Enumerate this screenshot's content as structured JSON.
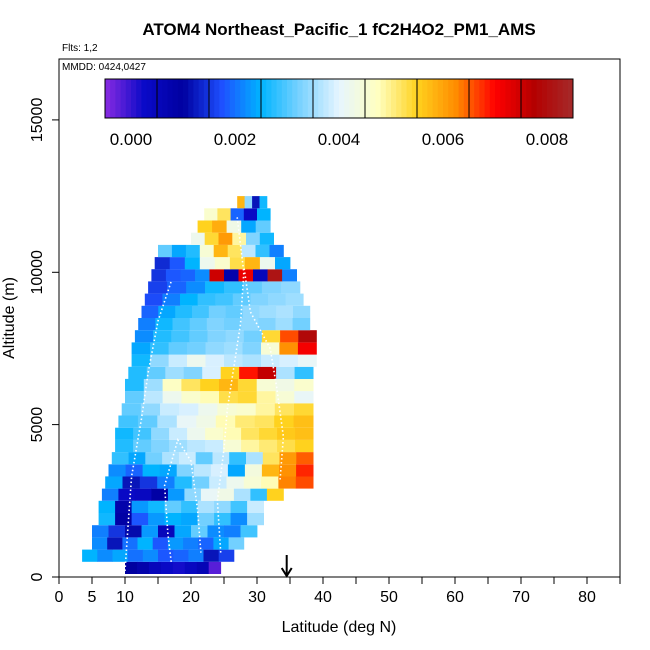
{
  "chart_data": {
    "type": "heatmap",
    "title": "ATOM4 Northeast_Pacific_1 fC2H4O2_PM1_AMS",
    "flights_note": "Flts: 1,2",
    "dates_note": "MMDD: 0424,0427",
    "xlabel": "Latitude (deg N)",
    "ylabel": "Altitude (m)",
    "xlim": [
      0,
      85
    ],
    "ylim": [
      0,
      17000
    ],
    "x_ticks": [
      0,
      5,
      10,
      20,
      30,
      40,
      50,
      60,
      70,
      80
    ],
    "y_ticks": [
      0,
      5000,
      10000,
      15000
    ],
    "colorbar": {
      "range": [
        -0.0005,
        0.0085
      ],
      "ticks": [
        0.0,
        0.002,
        0.004,
        0.006,
        0.008
      ],
      "tick_labels": [
        "0.000",
        "0.002",
        "0.004",
        "0.006",
        "0.008"
      ],
      "colors": [
        "#8a2be2",
        "#0a0ac8",
        "#0000a0",
        "#1e50ff",
        "#00b4ff",
        "#7ad2ff",
        "#e6f5ff",
        "#ffffc0",
        "#ffd21e",
        "#ff8c00",
        "#ff0000",
        "#b40000",
        "#a52a2a"
      ]
    },
    "marker": {
      "latitude": 34.5,
      "label": "arrow"
    },
    "profiles": [
      {
        "alt": 300,
        "lat_min": 10,
        "lat_max": 24.5,
        "values": [
          0.001,
          0.0008,
          0.0005,
          0.0003,
          0.0002,
          0.0004,
          0.0006,
          -0.0002
        ]
      },
      {
        "alt": 700,
        "lat_min": 3.5,
        "lat_max": 26.5,
        "values": [
          0.0025,
          0.0022,
          0.0024,
          0.002,
          0.0022,
          0.0018,
          0.0019,
          0.0021,
          0.0012,
          0.0016
        ]
      },
      {
        "alt": 1100,
        "lat_min": 5,
        "lat_max": 28,
        "values": [
          0.0022,
          0.0012,
          0.002,
          0.0025,
          0.0018,
          0.0023,
          0.0021,
          0.0019,
          0.0024,
          0.0032
        ]
      },
      {
        "alt": 1500,
        "lat_min": 5,
        "lat_max": 30,
        "values": [
          0.0021,
          0.0015,
          0.0011,
          0.0023,
          0.0005,
          0.0024,
          0.0031,
          0.0022,
          0.0021,
          0.0029
        ]
      },
      {
        "alt": 1900,
        "lat_min": 6,
        "lat_max": 31,
        "values": [
          0.0026,
          0.0009,
          0.0018,
          0.0023,
          0.0025,
          0.0024,
          0.0032,
          0.0028,
          0.0022,
          0.0035
        ]
      },
      {
        "alt": 2300,
        "lat_min": 6,
        "lat_max": 31,
        "values": [
          0.0025,
          0.0008,
          0.0023,
          0.0026,
          0.0031,
          0.0028,
          0.0036,
          0.0034,
          0.0029,
          0.0038
        ]
      },
      {
        "alt": 2700,
        "lat_min": 6.5,
        "lat_max": 34,
        "values": [
          0.0021,
          0.0003,
          0.0004,
          0.0009,
          0.0023,
          0.0034,
          0.0041,
          0.0043,
          0.0036,
          0.0028,
          0.0055
        ]
      },
      {
        "alt": 3100,
        "lat_min": 7,
        "lat_max": 38.5,
        "values": [
          0.0024,
          0.0012,
          0.0015,
          0.0021,
          0.0027,
          0.0032,
          0.0038,
          0.0042,
          0.0045,
          0.0048,
          0.0063,
          0.0066
        ]
      },
      {
        "alt": 3500,
        "lat_min": 7.5,
        "lat_max": 38.5,
        "values": [
          0.0022,
          0.0019,
          0.0025,
          0.0024,
          0.0033,
          0.0037,
          0.0039,
          0.0024,
          0.0044,
          0.0058,
          0.0062,
          0.0068
        ]
      },
      {
        "alt": 3900,
        "lat_min": 8,
        "lat_max": 38.5,
        "values": [
          0.0028,
          0.0024,
          0.0032,
          0.0036,
          0.0038,
          0.0031,
          0.0037,
          0.0028,
          0.0036,
          0.0052,
          0.0061,
          0.0065
        ]
      },
      {
        "alt": 4300,
        "lat_min": 8.5,
        "lat_max": 38.5,
        "values": [
          0.0027,
          0.0031,
          0.0033,
          0.0035,
          0.0037,
          0.0038,
          0.0045,
          0.0049,
          0.0051,
          0.0053,
          0.0055
        ]
      },
      {
        "alt": 4700,
        "lat_min": 8.5,
        "lat_max": 38.5,
        "values": [
          0.0026,
          0.0029,
          0.0034,
          0.0038,
          0.0042,
          0.0046,
          0.0048,
          0.0052,
          0.0054,
          0.0056,
          0.0057
        ]
      },
      {
        "alt": 5100,
        "lat_min": 9,
        "lat_max": 38.5,
        "values": [
          0.0029,
          0.0031,
          0.0036,
          0.0041,
          0.0043,
          0.0048,
          0.0051,
          0.0052,
          0.0055,
          0.0057
        ]
      },
      {
        "alt": 5500,
        "lat_min": 9.5,
        "lat_max": 38.5,
        "values": [
          0.0031,
          0.0034,
          0.0038,
          0.0039,
          0.0042,
          0.0045,
          0.0046,
          0.0049,
          0.0052,
          0.0054
        ]
      },
      {
        "alt": 5900,
        "lat_min": 10,
        "lat_max": 38.5,
        "values": [
          0.0031,
          0.0037,
          0.0042,
          0.0046,
          0.0048,
          0.0053,
          0.0054,
          0.0049,
          0.0045,
          0.0041
        ]
      },
      {
        "alt": 6300,
        "lat_min": 10,
        "lat_max": 38.5,
        "values": [
          0.0027,
          0.0035,
          0.0047,
          0.0052,
          0.0055,
          0.0058,
          0.0054,
          0.0045,
          0.0043,
          0.0046
        ]
      },
      {
        "alt": 6700,
        "lat_min": 10.5,
        "lat_max": 38.5,
        "values": [
          0.0027,
          0.0031,
          0.0035,
          0.0033,
          0.0039,
          0.0055,
          0.0069,
          0.0076,
          0.0036,
          0.0028
        ]
      },
      {
        "alt": 7100,
        "lat_min": 11,
        "lat_max": 39,
        "values": [
          0.0026,
          0.0034,
          0.0038,
          0.0042,
          0.0039,
          0.0037,
          0.0036,
          0.0038,
          0.0039,
          0.0041
        ]
      },
      {
        "alt": 7500,
        "lat_min": 11,
        "lat_max": 39,
        "values": [
          0.0024,
          0.0028,
          0.0031,
          0.0032,
          0.0034,
          0.0035,
          0.0033,
          0.0045,
          0.0062,
          0.0071
        ]
      },
      {
        "alt": 7900,
        "lat_min": 11.5,
        "lat_max": 39,
        "values": [
          0.0022,
          0.0027,
          0.0029,
          0.0031,
          0.0033,
          0.0034,
          0.0032,
          0.0054,
          0.0066,
          0.0079
        ]
      },
      {
        "alt": 8300,
        "lat_min": 12,
        "lat_max": 38,
        "values": [
          0.0021,
          0.0026,
          0.0029,
          0.0031,
          0.0033,
          0.0032,
          0.0034,
          0.0033,
          0.0035,
          0.0032
        ]
      },
      {
        "alt": 8700,
        "lat_min": 12.5,
        "lat_max": 38,
        "values": [
          0.0019,
          0.0024,
          0.0027,
          0.0029,
          0.0032,
          0.0031,
          0.0034,
          0.0035,
          0.0036,
          0.0034
        ]
      },
      {
        "alt": 9100,
        "lat_min": 13,
        "lat_max": 37,
        "values": [
          0.0017,
          0.0021,
          0.0025,
          0.0028,
          0.0029,
          0.0031,
          0.0033,
          0.0034,
          0.0035
        ]
      },
      {
        "alt": 9500,
        "lat_min": 13.5,
        "lat_max": 36.5,
        "values": [
          0.0016,
          0.0019,
          0.0022,
          0.0026,
          0.0028,
          0.0031,
          0.0033,
          0.0034
        ]
      },
      {
        "alt": 9900,
        "lat_min": 14,
        "lat_max": 36,
        "values": [
          0.0015,
          0.0018,
          0.0019,
          0.0022,
          0.0075,
          0.0008,
          0.0072,
          0.0005,
          0.0081,
          0.0021
        ]
      },
      {
        "alt": 10300,
        "lat_min": 14.5,
        "lat_max": 35,
        "values": [
          0.0014,
          0.0018,
          0.0025,
          0.0042,
          0.0046,
          0.0053,
          0.0058,
          0.0042,
          0.0024
        ]
      },
      {
        "alt": 10700,
        "lat_min": 15,
        "lat_max": 34,
        "values": [
          0.0031,
          0.0024,
          0.0027,
          0.0045,
          0.0058,
          0.0052,
          0.0037,
          0.0028,
          0.0021
        ]
      },
      {
        "alt": 11100,
        "lat_min": 20,
        "lat_max": 32.5,
        "values": [
          0.0042,
          0.0054,
          0.0061,
          0.0049,
          0.0033,
          0.0026
        ]
      },
      {
        "alt": 11500,
        "lat_min": 21,
        "lat_max": 32,
        "values": [
          0.0055,
          0.0059,
          0.0043,
          0.0024,
          0.0031
        ]
      },
      {
        "alt": 11900,
        "lat_min": 22,
        "lat_max": 32,
        "values": [
          0.0046,
          0.0052,
          0.0019,
          0.0003,
          0.0025
        ]
      },
      {
        "alt": 12300,
        "lat_min": 27,
        "lat_max": 31.5,
        "values": [
          0.0058,
          0.0034,
          0.0012,
          0.0026
        ]
      }
    ],
    "flight_tracks": [
      [
        [
          10,
          200
        ],
        [
          10.5,
          1800
        ],
        [
          11,
          3300
        ],
        [
          12.5,
          5200
        ],
        [
          13.5,
          6700
        ],
        [
          15,
          8400
        ],
        [
          17,
          9700
        ]
      ],
      [
        [
          17,
          500
        ],
        [
          16.5,
          1400
        ],
        [
          16,
          3000
        ],
        [
          18,
          4500
        ],
        [
          20,
          3800
        ],
        [
          21,
          2200
        ],
        [
          21.5,
          800
        ]
      ],
      [
        [
          24.5,
          800
        ],
        [
          24,
          2500
        ],
        [
          25,
          4200
        ],
        [
          25.5,
          5500
        ],
        [
          26.5,
          6900
        ],
        [
          27.5,
          8300
        ],
        [
          28,
          10000
        ],
        [
          27,
          11800
        ]
      ],
      [
        [
          33.5,
          3200
        ],
        [
          34,
          4600
        ],
        [
          33,
          6200
        ],
        [
          32,
          7500
        ],
        [
          29,
          8700
        ],
        [
          28,
          10200
        ]
      ]
    ]
  }
}
